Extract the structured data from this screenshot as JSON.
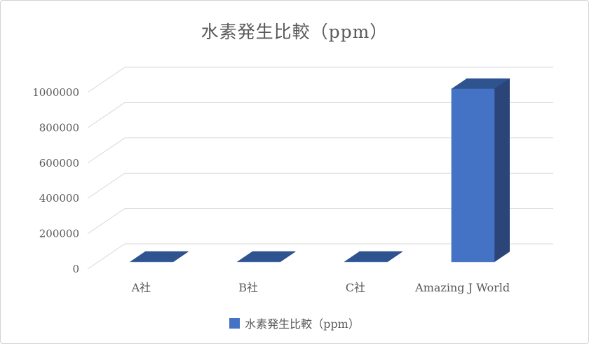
{
  "frame": {
    "background": "#ffffff",
    "border_color": "#d3d3d3"
  },
  "chart": {
    "title": "水素発生比較（ppm）",
    "legend": {
      "label": "水素発生比較（ppm）"
    }
  },
  "chart_data": {
    "type": "bar",
    "variant": "3d-column",
    "title": "水素発生比較（ppm）",
    "categories": [
      "A社",
      "B社",
      "C社",
      "Amazing J World"
    ],
    "series": [
      {
        "name": "水素発生比較（ppm）",
        "values": [
          1000,
          1000,
          1000,
          980000
        ]
      }
    ],
    "ylim": [
      0,
      1000000
    ],
    "yticks": [
      0,
      200000,
      400000,
      600000,
      800000,
      1000000
    ],
    "grid": true,
    "legend_position": "bottom",
    "colors": {
      "bar_front": "#4472C4",
      "bar_top": "#2E538F",
      "bar_side": "#2B4578",
      "gridline": "#D9D9D9",
      "text": "#595959"
    }
  }
}
